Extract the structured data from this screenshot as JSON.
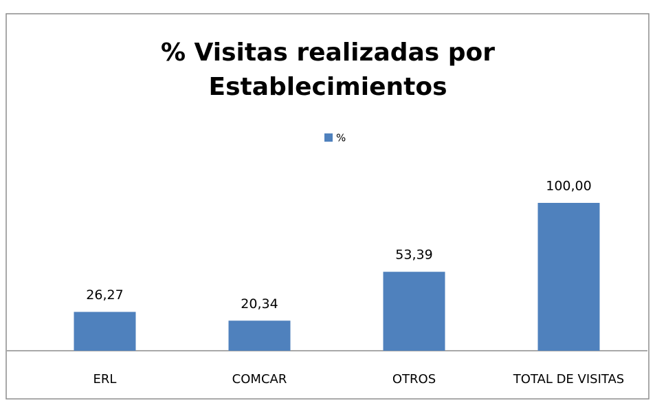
{
  "chart_data": {
    "type": "bar",
    "title": "% Visitas realizadas por Establecimientos",
    "categories": [
      "ERL",
      "COMCAR",
      "OTROS",
      "TOTAL DE VISITAS"
    ],
    "series": [
      {
        "name": "%",
        "color": "#4f81bd",
        "values": [
          26.27,
          20.34,
          53.39,
          100.0
        ],
        "value_labels": [
          "26,27",
          "20,34",
          "53,39",
          "100,00"
        ]
      }
    ],
    "legend": "top"
  }
}
